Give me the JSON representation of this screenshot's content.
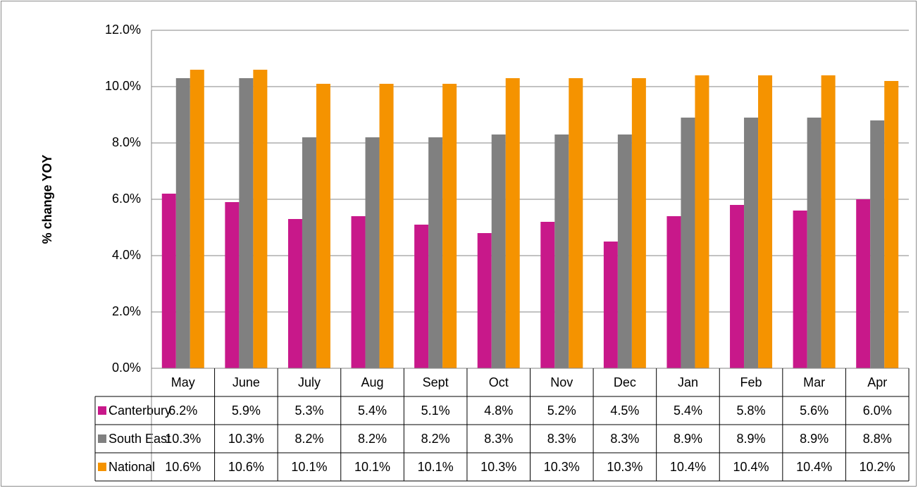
{
  "chart_data": {
    "type": "bar",
    "y_label": "% change YOY",
    "categories": [
      "May",
      "June",
      "July",
      "Aug",
      "Sept",
      "Oct",
      "Nov",
      "Dec",
      "Jan",
      "Feb",
      "Mar",
      "Apr"
    ],
    "series": [
      {
        "name": "Canterbury",
        "color": "#c8188a",
        "values": [
          6.2,
          5.9,
          5.3,
          5.4,
          5.1,
          4.8,
          5.2,
          4.5,
          5.4,
          5.8,
          5.6,
          6.0
        ],
        "value_labels": [
          "6.2%",
          "5.9%",
          "5.3%",
          "5.4%",
          "5.1%",
          "4.8%",
          "5.2%",
          "4.5%",
          "5.4%",
          "5.8%",
          "5.6%",
          "6.0%"
        ]
      },
      {
        "name": "South East",
        "color": "#808080",
        "values": [
          10.3,
          10.3,
          8.2,
          8.2,
          8.2,
          8.3,
          8.3,
          8.3,
          8.9,
          8.9,
          8.9,
          8.8
        ],
        "value_labels": [
          "10.3%",
          "10.3%",
          "8.2%",
          "8.2%",
          "8.2%",
          "8.3%",
          "8.3%",
          "8.3%",
          "8.9%",
          "8.9%",
          "8.9%",
          "8.8%"
        ]
      },
      {
        "name": "National",
        "color": "#f59300",
        "values": [
          10.6,
          10.6,
          10.1,
          10.1,
          10.1,
          10.3,
          10.3,
          10.3,
          10.4,
          10.4,
          10.4,
          10.2
        ],
        "value_labels": [
          "10.6%",
          "10.6%",
          "10.1%",
          "10.1%",
          "10.1%",
          "10.3%",
          "10.3%",
          "10.3%",
          "10.4%",
          "10.4%",
          "10.4%",
          "10.2%"
        ]
      }
    ],
    "ylim": [
      0,
      12
    ],
    "yticks": [
      {
        "value": 0,
        "label": "0.0%"
      },
      {
        "value": 2,
        "label": "2.0%"
      },
      {
        "value": 4,
        "label": "4.0%"
      },
      {
        "value": 6,
        "label": "6.0%"
      },
      {
        "value": 8,
        "label": "8.0%"
      },
      {
        "value": 10,
        "label": "10.0%"
      },
      {
        "value": 12,
        "label": "12.0%"
      }
    ],
    "grid": true
  }
}
